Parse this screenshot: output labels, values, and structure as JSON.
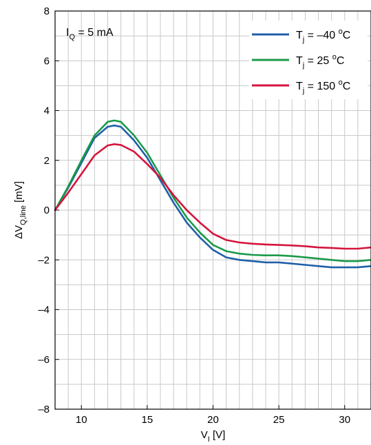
{
  "chart_data": {
    "type": "line",
    "xlabel": {
      "main": "V",
      "sub": "I",
      "unit": " [V]"
    },
    "ylabel": {
      "main": "ΔV",
      "sub": "Q,line",
      "unit": " [mV]"
    },
    "xlim": [
      8,
      32
    ],
    "ylim": [
      -8,
      8
    ],
    "x_ticks": [
      10,
      15,
      20,
      25,
      30
    ],
    "y_ticks": [
      -8,
      -6,
      -4,
      -2,
      0,
      2,
      4,
      6,
      8
    ],
    "y_tick_labels": [
      "–8",
      "–6",
      "–4",
      "–2",
      "0",
      "2",
      "4",
      "6",
      "8"
    ],
    "grid": true,
    "legend_position": "top-right",
    "annotation": {
      "main": "I",
      "sub": "Q",
      "rest": " = 5 mA"
    },
    "series": [
      {
        "name": "T_j = –40 °C",
        "label": {
          "main": "T",
          "sub": "j",
          "pre": " = –40 ",
          "sup": "o",
          "post": "C"
        },
        "color": "#1f5fa8",
        "x": [
          8,
          9,
          10,
          11,
          12,
          12.5,
          13,
          14,
          15,
          16,
          17,
          18,
          19,
          20,
          21,
          22,
          23,
          24,
          25,
          26,
          27,
          28,
          29,
          30,
          31,
          32
        ],
        "y": [
          0,
          0.9,
          1.9,
          2.9,
          3.35,
          3.4,
          3.35,
          2.8,
          2.1,
          1.2,
          0.3,
          -0.5,
          -1.1,
          -1.6,
          -1.9,
          -2.0,
          -2.05,
          -2.1,
          -2.1,
          -2.15,
          -2.2,
          -2.25,
          -2.3,
          -2.3,
          -2.3,
          -2.25
        ]
      },
      {
        "name": "T_j = 25 °C",
        "label": {
          "main": "T",
          "sub": "j",
          "pre": " = 25 ",
          "sup": "o",
          "post": "C"
        },
        "color": "#1a9a4a",
        "x": [
          8,
          9,
          10,
          11,
          12,
          12.5,
          13,
          14,
          15,
          16,
          17,
          18,
          19,
          20,
          21,
          22,
          23,
          24,
          25,
          26,
          27,
          28,
          29,
          30,
          31,
          32
        ],
        "y": [
          0,
          0.95,
          2.0,
          3.0,
          3.55,
          3.6,
          3.55,
          3.0,
          2.3,
          1.4,
          0.5,
          -0.3,
          -0.9,
          -1.4,
          -1.65,
          -1.75,
          -1.8,
          -1.82,
          -1.82,
          -1.85,
          -1.9,
          -1.95,
          -2.0,
          -2.05,
          -2.05,
          -2.0
        ]
      },
      {
        "name": "T_j = 150 °C",
        "label": {
          "main": "T",
          "sub": "j",
          "pre": " = 150 ",
          "sup": "o",
          "post": "C"
        },
        "color": "#d4143c",
        "x": [
          8,
          9,
          10,
          11,
          12,
          12.5,
          13,
          14,
          15,
          16,
          17,
          18,
          19,
          20,
          21,
          22,
          23,
          24,
          25,
          26,
          27,
          28,
          29,
          30,
          31,
          32
        ],
        "y": [
          0,
          0.7,
          1.45,
          2.2,
          2.6,
          2.65,
          2.62,
          2.35,
          1.85,
          1.3,
          0.6,
          0.0,
          -0.5,
          -0.95,
          -1.2,
          -1.3,
          -1.35,
          -1.38,
          -1.4,
          -1.42,
          -1.45,
          -1.5,
          -1.52,
          -1.55,
          -1.55,
          -1.5
        ]
      }
    ]
  }
}
